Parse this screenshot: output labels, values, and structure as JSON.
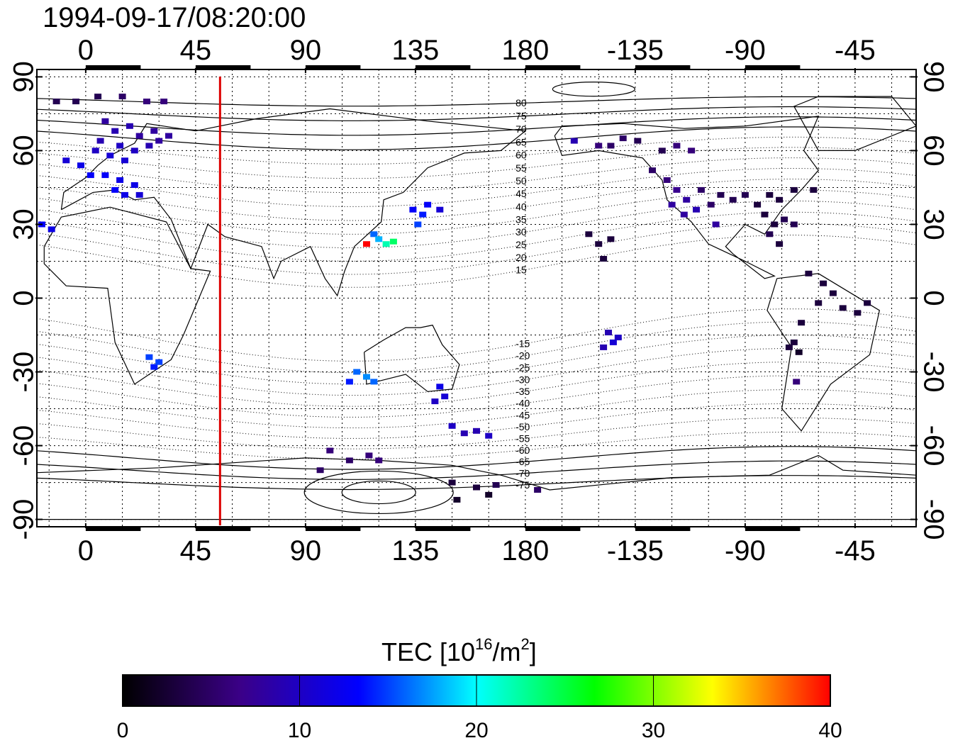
{
  "title": "1994-09-17/08:20:00",
  "map": {
    "lon_range": [
      -20,
      340
    ],
    "lat_range": [
      -93,
      93
    ],
    "lon_ticks": [
      {
        "value": 0,
        "label": "0"
      },
      {
        "value": 45,
        "label": "45"
      },
      {
        "value": 90,
        "label": "90"
      },
      {
        "value": 135,
        "label": "135"
      },
      {
        "value": 180,
        "label": "180"
      },
      {
        "value": 225,
        "label": "-135"
      },
      {
        "value": 270,
        "label": "-90"
      },
      {
        "value": 315,
        "label": "-45"
      }
    ],
    "lat_ticks": [
      {
        "value": 90,
        "label": "90"
      },
      {
        "value": 60,
        "label": "60"
      },
      {
        "value": 30,
        "label": "30"
      },
      {
        "value": 0,
        "label": "0"
      },
      {
        "value": -30,
        "label": "-30"
      },
      {
        "value": -60,
        "label": "-60"
      },
      {
        "value": -90,
        "label": "-90"
      }
    ],
    "meridian_marker": {
      "lon": 55,
      "color": "#dd0000"
    },
    "contour_labels": [
      {
        "lat": 80,
        "label": "80"
      },
      {
        "lat": 75,
        "label": "75"
      },
      {
        "lat": 70,
        "label": "70"
      },
      {
        "lat": 65,
        "label": "65"
      },
      {
        "lat": 60,
        "label": "60"
      },
      {
        "lat": 55,
        "label": "55"
      },
      {
        "lat": 50,
        "label": "50"
      },
      {
        "lat": 45,
        "label": "45"
      },
      {
        "lat": 40,
        "label": "40"
      },
      {
        "lat": 35,
        "label": "35"
      },
      {
        "lat": 30,
        "label": "30"
      },
      {
        "lat": 25,
        "label": "25"
      },
      {
        "lat": 20,
        "label": "20"
      },
      {
        "lat": 15,
        "label": "15"
      },
      {
        "lat": -15,
        "label": "-15"
      },
      {
        "lat": -20,
        "label": "-20"
      },
      {
        "lat": -25,
        "label": "-25"
      },
      {
        "lat": -30,
        "label": "-30"
      },
      {
        "lat": -35,
        "label": "-35"
      },
      {
        "lat": -40,
        "label": "-40"
      },
      {
        "lat": -45,
        "label": "-45"
      },
      {
        "lat": -50,
        "label": "-50"
      },
      {
        "lat": -55,
        "label": "-55"
      },
      {
        "lat": -60,
        "label": "-60"
      },
      {
        "lat": -65,
        "label": "-65"
      },
      {
        "lat": -70,
        "label": "-70"
      },
      {
        "lat": -75,
        "label": "-75"
      }
    ],
    "tec_points": [
      {
        "lon": -12,
        "lat": 80,
        "tec": 4
      },
      {
        "lon": -4,
        "lat": 80,
        "tec": 4
      },
      {
        "lon": 5,
        "lat": 82,
        "tec": 4
      },
      {
        "lon": 15,
        "lat": 82,
        "tec": 5
      },
      {
        "lon": 25,
        "lat": 80,
        "tec": 6
      },
      {
        "lon": 32,
        "lat": 80,
        "tec": 6
      },
      {
        "lon": 8,
        "lat": 72,
        "tec": 8
      },
      {
        "lon": 12,
        "lat": 68,
        "tec": 9
      },
      {
        "lon": 18,
        "lat": 70,
        "tec": 9
      },
      {
        "lon": 22,
        "lat": 66,
        "tec": 8
      },
      {
        "lon": 28,
        "lat": 68,
        "tec": 8
      },
      {
        "lon": 6,
        "lat": 64,
        "tec": 9
      },
      {
        "lon": 14,
        "lat": 62,
        "tec": 10
      },
      {
        "lon": 20,
        "lat": 60,
        "tec": 10
      },
      {
        "lon": 26,
        "lat": 62,
        "tec": 9
      },
      {
        "lon": 30,
        "lat": 64,
        "tec": 8
      },
      {
        "lon": 10,
        "lat": 58,
        "tec": 11
      },
      {
        "lon": 16,
        "lat": 56,
        "tec": 11
      },
      {
        "lon": 4,
        "lat": 60,
        "tec": 10
      },
      {
        "lon": 34,
        "lat": 66,
        "tec": 8
      },
      {
        "lon": -8,
        "lat": 56,
        "tec": 11
      },
      {
        "lon": -2,
        "lat": 54,
        "tec": 12
      },
      {
        "lon": 2,
        "lat": 50,
        "tec": 13
      },
      {
        "lon": 8,
        "lat": 50,
        "tec": 13
      },
      {
        "lon": 14,
        "lat": 48,
        "tec": 12
      },
      {
        "lon": 20,
        "lat": 46,
        "tec": 12
      },
      {
        "lon": 12,
        "lat": 44,
        "tec": 13
      },
      {
        "lon": 16,
        "lat": 42,
        "tec": 12
      },
      {
        "lon": 22,
        "lat": 42,
        "tec": 11
      },
      {
        "lon": -18,
        "lat": 30,
        "tec": 13
      },
      {
        "lon": -14,
        "lat": 28,
        "tec": 12
      },
      {
        "lon": 26,
        "lat": -24,
        "tec": 15
      },
      {
        "lon": 28,
        "lat": -28,
        "tec": 14
      },
      {
        "lon": 30,
        "lat": -26,
        "tec": 15
      },
      {
        "lon": 134,
        "lat": 36,
        "tec": 13
      },
      {
        "lon": 138,
        "lat": 34,
        "tec": 14
      },
      {
        "lon": 140,
        "lat": 38,
        "tec": 13
      },
      {
        "lon": 136,
        "lat": 30,
        "tec": 15
      },
      {
        "lon": 145,
        "lat": 36,
        "tec": 11
      },
      {
        "lon": 118,
        "lat": 26,
        "tec": 16
      },
      {
        "lon": 120,
        "lat": 24,
        "tec": 18
      },
      {
        "lon": 123,
        "lat": 22,
        "tec": 22
      },
      {
        "lon": 126,
        "lat": 23,
        "tec": 24
      },
      {
        "lon": 115,
        "lat": 22,
        "tec": 40
      },
      {
        "lon": 111,
        "lat": -30,
        "tec": 16
      },
      {
        "lon": 115,
        "lat": -32,
        "tec": 17
      },
      {
        "lon": 118,
        "lat": -34,
        "tec": 16
      },
      {
        "lon": 108,
        "lat": -34,
        "tec": 14
      },
      {
        "lon": 145,
        "lat": -36,
        "tec": 12
      },
      {
        "lon": 147,
        "lat": -40,
        "tec": 11
      },
      {
        "lon": 143,
        "lat": -42,
        "tec": 10
      },
      {
        "lon": 150,
        "lat": -52,
        "tec": 10
      },
      {
        "lon": 155,
        "lat": -55,
        "tec": 9
      },
      {
        "lon": 160,
        "lat": -54,
        "tec": 9
      },
      {
        "lon": 165,
        "lat": -56,
        "tec": 10
      },
      {
        "lon": 100,
        "lat": -62,
        "tec": 6
      },
      {
        "lon": 108,
        "lat": -66,
        "tec": 5
      },
      {
        "lon": 116,
        "lat": -64,
        "tec": 6
      },
      {
        "lon": 120,
        "lat": -66,
        "tec": 6
      },
      {
        "lon": 96,
        "lat": -70,
        "tec": 5
      },
      {
        "lon": 150,
        "lat": -75,
        "tec": 3
      },
      {
        "lon": 160,
        "lat": -77,
        "tec": 3
      },
      {
        "lon": 168,
        "lat": -76,
        "tec": 4
      },
      {
        "lon": 152,
        "lat": -82,
        "tec": 2
      },
      {
        "lon": 165,
        "lat": -80,
        "tec": 2
      },
      {
        "lon": 185,
        "lat": -78,
        "tec": 5
      },
      {
        "lon": 200,
        "lat": 64,
        "tec": 9
      },
      {
        "lon": 210,
        "lat": 62,
        "tec": 6
      },
      {
        "lon": 215,
        "lat": 62,
        "tec": 5
      },
      {
        "lon": 220,
        "lat": 65,
        "tec": 5
      },
      {
        "lon": 226,
        "lat": 64,
        "tec": 4
      },
      {
        "lon": 236,
        "lat": 60,
        "tec": 4
      },
      {
        "lon": 242,
        "lat": 62,
        "tec": 6
      },
      {
        "lon": 248,
        "lat": 60,
        "tec": 6
      },
      {
        "lon": 232,
        "lat": 52,
        "tec": 5
      },
      {
        "lon": 238,
        "lat": 48,
        "tec": 6
      },
      {
        "lon": 242,
        "lat": 44,
        "tec": 7
      },
      {
        "lon": 246,
        "lat": 40,
        "tec": 8
      },
      {
        "lon": 250,
        "lat": 36,
        "tec": 9
      },
      {
        "lon": 240,
        "lat": 38,
        "tec": 8
      },
      {
        "lon": 245,
        "lat": 34,
        "tec": 8
      },
      {
        "lon": 252,
        "lat": 44,
        "tec": 5
      },
      {
        "lon": 256,
        "lat": 38,
        "tec": 5
      },
      {
        "lon": 260,
        "lat": 42,
        "tec": 4
      },
      {
        "lon": 265,
        "lat": 40,
        "tec": 4
      },
      {
        "lon": 270,
        "lat": 42,
        "tec": 4
      },
      {
        "lon": 275,
        "lat": 38,
        "tec": 3
      },
      {
        "lon": 280,
        "lat": 42,
        "tec": 3
      },
      {
        "lon": 284,
        "lat": 40,
        "tec": 3
      },
      {
        "lon": 290,
        "lat": 44,
        "tec": 3
      },
      {
        "lon": 278,
        "lat": 34,
        "tec": 3
      },
      {
        "lon": 282,
        "lat": 30,
        "tec": 3
      },
      {
        "lon": 286,
        "lat": 32,
        "tec": 4
      },
      {
        "lon": 290,
        "lat": 30,
        "tec": 4
      },
      {
        "lon": 258,
        "lat": 30,
        "tec": 8
      },
      {
        "lon": 280,
        "lat": 26,
        "tec": 4
      },
      {
        "lon": 284,
        "lat": 22,
        "tec": 3
      },
      {
        "lon": 298,
        "lat": 44,
        "tec": 3
      },
      {
        "lon": 206,
        "lat": 26,
        "tec": 3
      },
      {
        "lon": 210,
        "lat": 22,
        "tec": 3
      },
      {
        "lon": 215,
        "lat": 24,
        "tec": 3
      },
      {
        "lon": 212,
        "lat": 16,
        "tec": 3
      },
      {
        "lon": 296,
        "lat": 10,
        "tec": 3
      },
      {
        "lon": 302,
        "lat": 6,
        "tec": 3
      },
      {
        "lon": 306,
        "lat": 2,
        "tec": 3
      },
      {
        "lon": 300,
        "lat": -2,
        "tec": 3
      },
      {
        "lon": 310,
        "lat": -4,
        "tec": 3
      },
      {
        "lon": 316,
        "lat": -6,
        "tec": 3
      },
      {
        "lon": 320,
        "lat": -2,
        "tec": 3
      },
      {
        "lon": 293,
        "lat": -10,
        "tec": 3
      },
      {
        "lon": 290,
        "lat": -18,
        "tec": 3
      },
      {
        "lon": 292,
        "lat": -22,
        "tec": 2
      },
      {
        "lon": 288,
        "lat": -20,
        "tec": 3
      },
      {
        "lon": 291,
        "lat": -34,
        "tec": 6
      },
      {
        "lon": 214,
        "lat": -14,
        "tec": 9
      },
      {
        "lon": 218,
        "lat": -16,
        "tec": 10
      },
      {
        "lon": 212,
        "lat": -20,
        "tec": 9
      },
      {
        "lon": 216,
        "lat": -18,
        "tec": 11
      }
    ],
    "style": {
      "grid": "dotted",
      "coastlines": true,
      "contour_lines": "dotted (north/south), solid (polar)"
    }
  },
  "colorbar": {
    "title_prefix": "TEC  [10",
    "title_exp": "16",
    "title_mid": "/m",
    "title_exp2": "2",
    "title_suffix": "]",
    "range": [
      0,
      40
    ],
    "ticks": [
      {
        "value": 0,
        "label": "0"
      },
      {
        "value": 10,
        "label": "10"
      },
      {
        "value": 20,
        "label": "20"
      },
      {
        "value": 30,
        "label": "30"
      },
      {
        "value": 40,
        "label": "40"
      }
    ],
    "stops": [
      "#000000",
      "#3b0088",
      "#0000ff",
      "#00ffff",
      "#00ff00",
      "#ffff00",
      "#ff0000"
    ]
  }
}
